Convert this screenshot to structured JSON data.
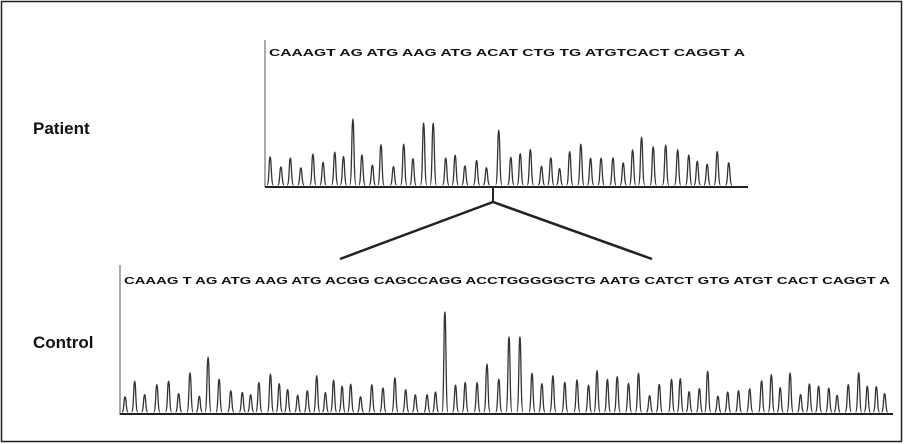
{
  "figure": {
    "patient": {
      "label": "Patient",
      "sequence": "CAAAGT AG ATG AAG ATG ACAT CTG TG ATGTCACT CAGGT A"
    },
    "control": {
      "label": "Control",
      "sequence": "CAAAG T AG ATG AAG ATG ACGG CAGCCAGG ACCTGGGGGCTG AATG CATCT GTG ATGT CACT CAGGT A"
    }
  }
}
